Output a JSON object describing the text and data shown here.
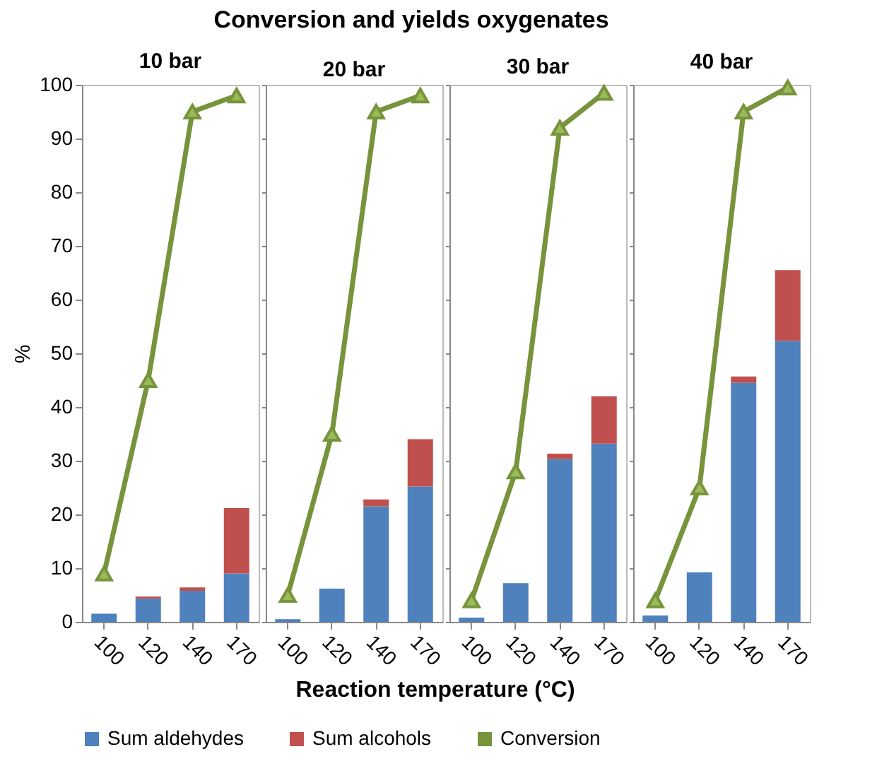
{
  "chart_data": [
    {
      "type": "bar",
      "title": "Conversion and yields oxygenates",
      "subtitle": "10 bar",
      "xlabel": "Reaction temperature (°C)",
      "ylabel": "%",
      "stacked": true,
      "legend": "bottom",
      "grid": false,
      "marker": "triangle",
      "ylim": [
        0,
        100
      ],
      "yticks": [
        0,
        10,
        20,
        30,
        40,
        50,
        60,
        70,
        80,
        90,
        100
      ],
      "categories": [
        "100",
        "120",
        "140",
        "170"
      ],
      "series": [
        {
          "name": "Sum aldehydes",
          "color": "#4f81bd",
          "values": [
            1.5,
            4.3,
            5.8,
            9
          ]
        },
        {
          "name": "Sum alcohols",
          "color": "#c0504d",
          "values": [
            0,
            0.4,
            0.6,
            12.2
          ]
        },
        {
          "name": "Conversion",
          "type": "line",
          "color": "#77933c",
          "values": [
            9,
            45,
            95,
            98
          ]
        }
      ]
    },
    {
      "type": "bar",
      "subtitle": "20 bar",
      "stacked": true,
      "marker": "triangle",
      "tick_labels": "x",
      "ylim": [
        0,
        100
      ],
      "yticks": [
        0,
        10,
        20,
        30,
        40,
        50,
        60,
        70,
        80,
        90,
        100
      ],
      "categories": [
        "100",
        "120",
        "140",
        "170"
      ],
      "series": [
        {
          "name": "Sum aldehydes",
          "color": "#4f81bd",
          "values": [
            0.5,
            6.2,
            21.5,
            25.2
          ]
        },
        {
          "name": "Sum alcohols",
          "color": "#c0504d",
          "values": [
            0,
            0,
            1.3,
            8.8
          ]
        },
        {
          "name": "Conversion",
          "type": "line",
          "color": "#77933c",
          "values": [
            5,
            35,
            95,
            98
          ]
        }
      ]
    },
    {
      "type": "bar",
      "subtitle": "30 bar",
      "stacked": true,
      "marker": "triangle",
      "tick_labels": "x",
      "ylim": [
        0,
        100
      ],
      "yticks": [
        0,
        10,
        20,
        30,
        40,
        50,
        60,
        70,
        80,
        90,
        100
      ],
      "categories": [
        "100",
        "120",
        "140",
        "170"
      ],
      "series": [
        {
          "name": "Sum aldehydes",
          "color": "#4f81bd",
          "values": [
            0.8,
            7.2,
            30.3,
            33.2
          ]
        },
        {
          "name": "Sum alcohols",
          "color": "#c0504d",
          "values": [
            0,
            0,
            1,
            8.8
          ]
        },
        {
          "name": "Conversion",
          "type": "line",
          "color": "#77933c",
          "values": [
            4,
            28,
            92,
            98.5
          ]
        }
      ]
    },
    {
      "type": "bar",
      "subtitle": "40 bar",
      "stacked": true,
      "marker": "triangle",
      "tick_labels": "x",
      "ylim": [
        0,
        100
      ],
      "yticks": [
        0,
        10,
        20,
        30,
        40,
        50,
        60,
        70,
        80,
        90,
        100
      ],
      "categories": [
        "100",
        "120",
        "140",
        "170"
      ],
      "series": [
        {
          "name": "Sum aldehydes",
          "color": "#4f81bd",
          "values": [
            1.2,
            9.2,
            44.5,
            52.3
          ]
        },
        {
          "name": "Sum alcohols",
          "color": "#c0504d",
          "values": [
            0,
            0,
            1.2,
            13.2
          ]
        },
        {
          "name": "Conversion",
          "type": "line",
          "color": "#77933c",
          "values": [
            4,
            25,
            95,
            99.5
          ]
        }
      ]
    }
  ]
}
